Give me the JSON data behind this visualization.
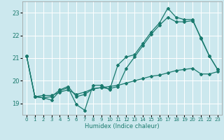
{
  "xlabel": "Humidex (Indice chaleur)",
  "xlim": [
    -0.5,
    23.5
  ],
  "ylim": [
    18.5,
    23.5
  ],
  "yticks": [
    19,
    20,
    21,
    22,
    23
  ],
  "xticks": [
    0,
    1,
    2,
    3,
    4,
    5,
    6,
    7,
    8,
    9,
    10,
    11,
    12,
    13,
    14,
    15,
    16,
    17,
    18,
    19,
    20,
    21,
    22,
    23
  ],
  "background_color": "#cce8ee",
  "grid_color": "#ffffff",
  "line_color": "#1a7a6e",
  "series": [
    {
      "x": [
        0,
        1,
        2,
        3,
        4,
        5,
        6,
        7,
        8,
        9,
        10,
        11,
        12,
        13,
        14,
        15,
        16,
        17,
        18,
        19,
        20,
        21,
        22,
        23
      ],
      "y": [
        21.1,
        19.3,
        19.25,
        19.15,
        19.55,
        19.7,
        18.95,
        18.7,
        19.8,
        19.8,
        19.6,
        20.7,
        21.05,
        21.15,
        21.65,
        22.15,
        22.55,
        23.2,
        22.8,
        22.7,
        22.7,
        21.85,
        21.1,
        20.5
      ]
    },
    {
      "x": [
        0,
        1,
        2,
        3,
        4,
        5,
        6,
        7,
        8,
        9,
        10,
        11,
        12,
        13,
        14,
        15,
        16,
        17,
        18,
        19,
        20,
        21,
        22,
        23
      ],
      "y": [
        21.1,
        19.3,
        19.25,
        19.3,
        19.6,
        19.75,
        19.3,
        19.4,
        19.65,
        19.7,
        19.65,
        19.75,
        20.55,
        21.05,
        21.55,
        22.05,
        22.45,
        22.8,
        22.6,
        22.6,
        22.65,
        21.9,
        21.1,
        20.5
      ]
    },
    {
      "x": [
        0,
        1,
        2,
        3,
        4,
        5,
        6,
        7,
        8,
        9,
        10,
        11,
        12,
        13,
        14,
        15,
        16,
        17,
        18,
        19,
        20,
        21,
        22,
        23
      ],
      "y": [
        21.1,
        19.3,
        19.35,
        19.35,
        19.5,
        19.6,
        19.4,
        19.5,
        19.65,
        19.7,
        19.75,
        19.8,
        19.9,
        20.0,
        20.1,
        20.2,
        20.25,
        20.35,
        20.45,
        20.5,
        20.55,
        20.3,
        20.3,
        20.4
      ]
    }
  ]
}
